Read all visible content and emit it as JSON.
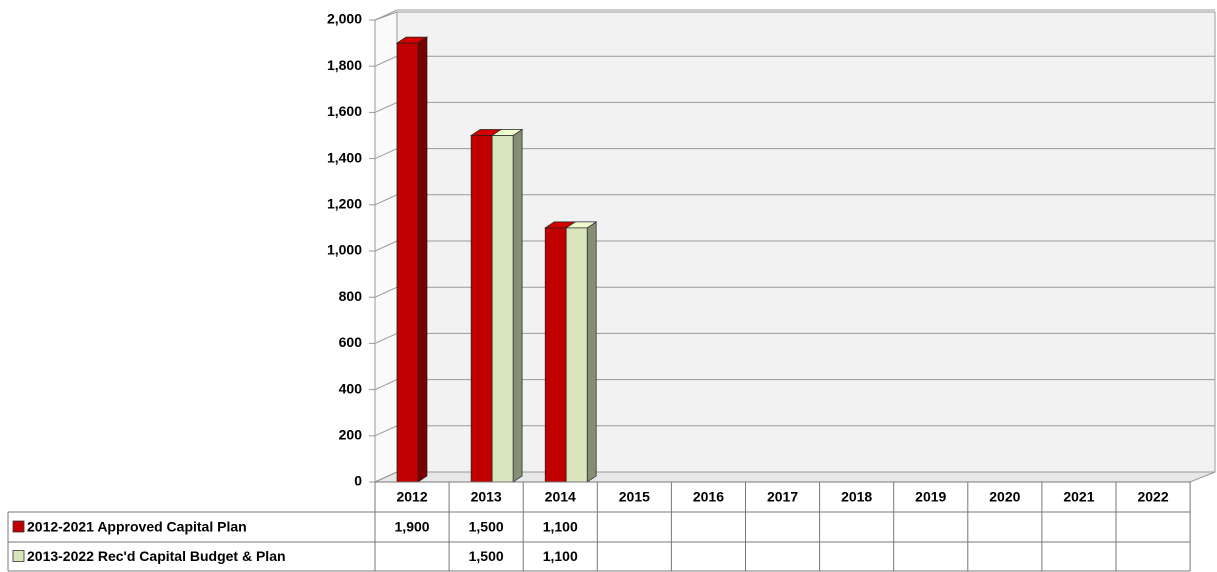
{
  "chart_data": {
    "type": "bar",
    "categories": [
      "2012",
      "2013",
      "2014",
      "2015",
      "2016",
      "2017",
      "2018",
      "2019",
      "2020",
      "2021",
      "2022"
    ],
    "series": [
      {
        "name": "2012-2021 Approved Capital Plan",
        "color": "#c00000",
        "values": [
          1900,
          1500,
          1100,
          null,
          null,
          null,
          null,
          null,
          null,
          null,
          null
        ],
        "value_labels": [
          "1,900",
          "1,500",
          "1,100",
          null,
          null,
          null,
          null,
          null,
          null,
          null,
          null
        ]
      },
      {
        "name": "2013-2022 Rec'd Capital Budget & Plan",
        "color": "#d8e4bc",
        "values": [
          null,
          1500,
          1100,
          null,
          null,
          null,
          null,
          null,
          null,
          null,
          null
        ],
        "value_labels": [
          null,
          "1,500",
          "1,100",
          null,
          null,
          null,
          null,
          null,
          null,
          null,
          null
        ]
      }
    ],
    "ylim": [
      0,
      2000
    ],
    "yticks": [
      0,
      200,
      400,
      600,
      800,
      {
        "value": 1000,
        "label": "1,000"
      },
      {
        "value": 1200,
        "label": "1,200"
      },
      {
        "value": 1400,
        "label": "1,400"
      },
      {
        "value": 1600,
        "label": "1,600"
      },
      {
        "value": 1800,
        "label": "1,800"
      },
      {
        "value": 2000,
        "label": "2,000"
      }
    ],
    "grid": true
  }
}
